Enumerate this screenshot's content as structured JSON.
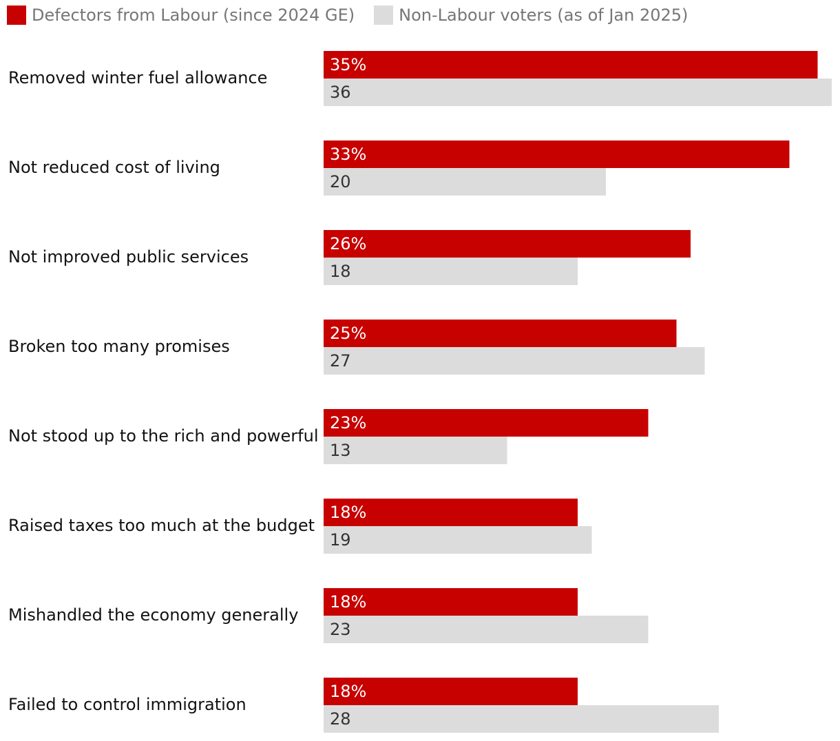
{
  "chart_data": {
    "type": "bar",
    "orientation": "horizontal",
    "title": "",
    "xlabel": "",
    "ylabel": "",
    "xlim": [
      0,
      36
    ],
    "grid": false,
    "legend": "top-left",
    "categories": [
      "Removed winter fuel allowance",
      "Not reduced cost of living",
      "Not improved public services",
      "Broken too many promises",
      "Not stood up to the rich and powerful",
      "Raised taxes too much at the budget",
      "Mishandled the economy generally",
      "Failed to control immigration"
    ],
    "series": [
      {
        "name": "Defectors from Labour (since 2024 GE)",
        "color": "#c70000",
        "label_color": "#ffffff",
        "values": [
          35,
          33,
          26,
          25,
          23,
          18,
          18,
          18
        ],
        "labels": [
          "35%",
          "33%",
          "26%",
          "25%",
          "23%",
          "18%",
          "18%",
          "18%"
        ]
      },
      {
        "name": "Non-Labour voters (as of Jan 2025)",
        "color": "#dcdcdc",
        "label_color": "#333333",
        "values": [
          36,
          20,
          18,
          27,
          13,
          19,
          23,
          28
        ],
        "labels": [
          "36",
          "20",
          "18",
          "27",
          "13",
          "19",
          "23",
          "28"
        ]
      }
    ]
  }
}
